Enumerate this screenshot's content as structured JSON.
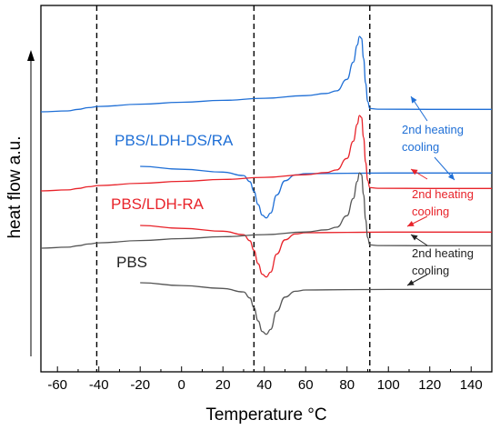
{
  "chart_data": {
    "type": "line",
    "xlabel": "Temperature °C",
    "ylabel": "heat flow a.u.",
    "xlim": [
      -68,
      150
    ],
    "x_ticks": [
      -60,
      -40,
      -20,
      0,
      20,
      40,
      60,
      80,
      100,
      120,
      140
    ],
    "y_ticks_shown": false,
    "grid": false,
    "reference_lines_x": [
      -41,
      35,
      91
    ],
    "series": [
      {
        "name": "PBS/LDH-DS/RA",
        "role": "2nd heating",
        "color": "#1f6fd6",
        "x": [
          -68,
          -55,
          -50,
          -45,
          -40,
          -20,
          0,
          20,
          40,
          60,
          70,
          75,
          80,
          83,
          85,
          86,
          87,
          88,
          89,
          90,
          91,
          95,
          120,
          150
        ],
        "y": [
          0,
          0.5,
          1.3,
          2.2,
          2.8,
          4.0,
          5.0,
          6.0,
          7.1,
          8.5,
          9.6,
          11.0,
          17.0,
          26.0,
          35.0,
          39.5,
          38.5,
          28.0,
          15.0,
          5.5,
          1.7,
          1.4,
          1.3,
          1.3
        ]
      },
      {
        "name": "PBS/LDH-DS/RA",
        "role": "cooling",
        "color": "#1f6fd6",
        "x": [
          -20,
          0,
          20,
          30,
          33,
          35,
          37,
          39,
          41,
          43,
          46,
          50,
          55,
          60,
          80,
          100,
          120,
          150
        ],
        "y": [
          0,
          -1.5,
          -3.0,
          -4.8,
          -8.0,
          -13.0,
          -20.0,
          -25.5,
          -27.0,
          -24.5,
          -15.0,
          -7.5,
          -4.5,
          -3.8,
          -3.6,
          -3.5,
          -3.5,
          -3.5
        ]
      },
      {
        "name": "PBS/LDH-RA",
        "role": "2nd heating",
        "color": "#e8232a",
        "x": [
          -68,
          -55,
          -50,
          -45,
          -40,
          -20,
          0,
          20,
          40,
          60,
          70,
          75,
          80,
          83,
          85,
          86,
          87,
          88,
          89,
          90,
          91,
          95,
          120,
          150
        ],
        "y": [
          0,
          0.5,
          1.3,
          2.2,
          2.8,
          4.0,
          5.0,
          6.0,
          7.1,
          8.5,
          9.6,
          11.0,
          17.0,
          26.0,
          35.0,
          39.5,
          38.5,
          28.0,
          15.0,
          5.5,
          1.7,
          1.4,
          1.3,
          1.3
        ]
      },
      {
        "name": "PBS/LDH-RA",
        "role": "cooling",
        "color": "#e8232a",
        "x": [
          -20,
          0,
          20,
          30,
          33,
          35,
          37,
          39,
          41,
          43,
          46,
          50,
          55,
          60,
          80,
          100,
          120,
          150
        ],
        "y": [
          0,
          -1.5,
          -3.0,
          -4.8,
          -8.0,
          -13.0,
          -20.0,
          -25.5,
          -27.0,
          -24.5,
          -15.0,
          -7.5,
          -4.5,
          -3.8,
          -3.6,
          -3.5,
          -3.5,
          -3.5
        ]
      },
      {
        "name": "PBS",
        "role": "2nd heating",
        "color": "#555555",
        "x": [
          -68,
          -55,
          -50,
          -45,
          -40,
          -20,
          0,
          20,
          40,
          60,
          70,
          75,
          80,
          83,
          85,
          86,
          87,
          88,
          89,
          90,
          91,
          95,
          120,
          150
        ],
        "y": [
          0,
          0.5,
          1.3,
          2.2,
          2.8,
          4.0,
          5.0,
          6.0,
          7.1,
          8.5,
          9.6,
          11.0,
          17.0,
          26.0,
          35.0,
          39.5,
          38.5,
          28.0,
          15.0,
          5.5,
          1.7,
          1.4,
          1.3,
          1.3
        ]
      },
      {
        "name": "PBS",
        "role": "cooling",
        "color": "#555555",
        "x": [
          -20,
          0,
          20,
          30,
          33,
          35,
          37,
          39,
          41,
          43,
          46,
          50,
          55,
          60,
          80,
          100,
          120,
          150
        ],
        "y": [
          0,
          -1.5,
          -3.0,
          -4.8,
          -8.0,
          -13.0,
          -20.0,
          -25.5,
          -27.0,
          -24.5,
          -15.0,
          -7.5,
          -4.5,
          -3.8,
          -3.6,
          -3.5,
          -3.5,
          -3.5
        ]
      }
    ],
    "sample_labels": [
      {
        "text": "PBS/LDH-DS/RA",
        "color": "#1f6fd6"
      },
      {
        "text": "PBS/LDH-RA",
        "color": "#e8232a"
      },
      {
        "text": "PBS",
        "color": "#222222"
      }
    ],
    "annotations": [
      {
        "group": "PBS/LDH-DS/RA",
        "color": "#1f6fd6",
        "line1": "2nd heating",
        "line2": "cooling"
      },
      {
        "group": "PBS/LDH-RA",
        "color": "#e8232a",
        "line1": "2nd heating",
        "line2": "cooling"
      },
      {
        "group": "PBS",
        "color": "#222222",
        "line1": "2nd heating",
        "line2": "cooling"
      }
    ]
  }
}
